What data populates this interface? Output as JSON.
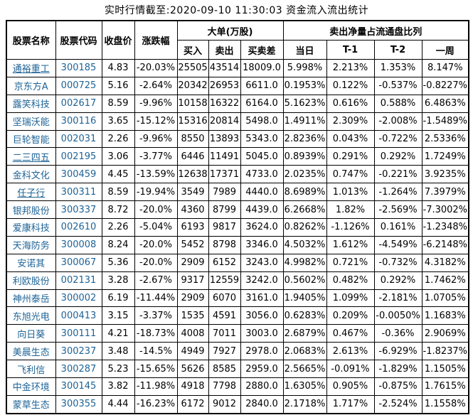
{
  "title": "实时行情截至:2020-09-10 11:30:03 资金流入流出统计",
  "colors": {
    "link": "#1e6396",
    "text": "#000000",
    "border": "#000000",
    "background": "#ffffff"
  },
  "chart_data": {
    "type": "table",
    "title": "实时行情截至:2020-09-10 11:30:03 资金流入流出统计",
    "column_groups": [
      {
        "label": "大单(万股)",
        "span": [
          "买入",
          "卖出",
          "买卖差"
        ]
      },
      {
        "label": "卖出净量占流通盘比列",
        "span": [
          "当日",
          "T-1",
          "T-2",
          "一周"
        ]
      }
    ],
    "columns": [
      "股票名称",
      "股票代码",
      "收盘价",
      "涨跌幅",
      "买入",
      "卖出",
      "买卖差",
      "当日",
      "T-1",
      "T-2",
      "一周"
    ],
    "rows": [
      [
        "通裕重工",
        "300185",
        "4.83",
        "-20.03%",
        "25505",
        "43514",
        "18009.0",
        "5.998%",
        "2.213%",
        "1.353%",
        "8.147%"
      ],
      [
        "京东方A",
        "000725",
        "5.16",
        "-2.64%",
        "20342",
        "26953",
        "6611.0",
        "0.1953%",
        "0.122%",
        "-0.537%",
        "-0.8227%"
      ],
      [
        "露笑科技",
        "002617",
        "8.59",
        "-9.96%",
        "10158",
        "16322",
        "6164.0",
        "5.1623%",
        "0.616%",
        "0.588%",
        "6.4863%"
      ],
      [
        "坚瑞沃能",
        "300116",
        "3.65",
        "-15.12%",
        "15316",
        "20814",
        "5498.0",
        "1.4911%",
        "2.309%",
        "-2.008%",
        "-1.5489%"
      ],
      [
        "巨轮智能",
        "002031",
        "2.26",
        "-9.96%",
        "8550",
        "13893",
        "5343.0",
        "2.8236%",
        "0.043%",
        "-0.722%",
        "2.5336%"
      ],
      [
        "二三四五",
        "002195",
        "3.06",
        "-3.77%",
        "6446",
        "11491",
        "5045.0",
        "0.8939%",
        "0.291%",
        "0.292%",
        "1.7249%"
      ],
      [
        "金科文化",
        "300459",
        "4.45",
        "-13.59%",
        "12638",
        "17371",
        "4733.0",
        "2.0235%",
        "0.747%",
        "-0.221%",
        "3.9235%"
      ],
      [
        "任子行",
        "300311",
        "8.59",
        "-19.94%",
        "3549",
        "7989",
        "4440.0",
        "8.6989%",
        "1.013%",
        "-1.264%",
        "7.3979%"
      ],
      [
        "银邦股份",
        "300337",
        "8.72",
        "-20.0%",
        "4360",
        "8799",
        "4439.0",
        "6.2668%",
        "1.82%",
        "-2.569%",
        "-7.3002%"
      ],
      [
        "爱康科技",
        "002610",
        "2.26",
        "-5.04%",
        "6193",
        "9817",
        "3624.0",
        "0.8262%",
        "-1.126%",
        "0.161%",
        "-1.2348%"
      ],
      [
        "天海防务",
        "300008",
        "8.24",
        "-20.0%",
        "5452",
        "8798",
        "3346.0",
        "4.5032%",
        "1.612%",
        "-4.549%",
        "-6.2148%"
      ],
      [
        "安诺其",
        "300067",
        "5.36",
        "-20.0%",
        "2909",
        "6152",
        "3243.0",
        "4.9982%",
        "0.721%",
        "-0.732%",
        "4.3182%"
      ],
      [
        "利欧股份",
        "002131",
        "3.28",
        "-2.67%",
        "9317",
        "12559",
        "3242.0",
        "0.5602%",
        "0.482%",
        "0.292%",
        "1.7462%"
      ],
      [
        "神州泰岳",
        "300002",
        "6.19",
        "-11.44%",
        "2909",
        "6070",
        "3161.0",
        "1.9405%",
        "1.099%",
        "-2.181%",
        "1.0705%"
      ],
      [
        "东旭光电",
        "000413",
        "3.15",
        "-3.37%",
        "1535",
        "4591",
        "3056.0",
        "0.6283%",
        "0.209%",
        "-0.0050%",
        "1.1683%"
      ],
      [
        "向日葵",
        "300111",
        "4.21",
        "-18.73%",
        "4008",
        "7011",
        "3003.0",
        "2.6879%",
        "0.467%",
        "-0.36%",
        "2.9069%"
      ],
      [
        "美晨生态",
        "300237",
        "3.48",
        "-14.5%",
        "4949",
        "7927",
        "2978.0",
        "2.0683%",
        "2.613%",
        "-6.929%",
        "-1.8237%"
      ],
      [
        "飞利信",
        "300287",
        "5.23",
        "-15.65%",
        "5626",
        "8585",
        "2959.0",
        "2.5665%",
        "-0.091%",
        "-1.829%",
        "1.1505%"
      ],
      [
        "中金环境",
        "300145",
        "3.82",
        "-11.98%",
        "4918",
        "7798",
        "2880.0",
        "1.6305%",
        "0.905%",
        "-0.875%",
        "1.7615%"
      ],
      [
        "蒙草生态",
        "300355",
        "4.44",
        "-16.23%",
        "6172",
        "9012",
        "2840.0",
        "2.1718%",
        "1.717%",
        "-2.524%",
        "1.1558%"
      ]
    ],
    "underlined_row_indices": [
      0,
      5,
      7
    ],
    "layout": {
      "grid": "on",
      "header_rows": 2,
      "data_rows": 20
    }
  }
}
